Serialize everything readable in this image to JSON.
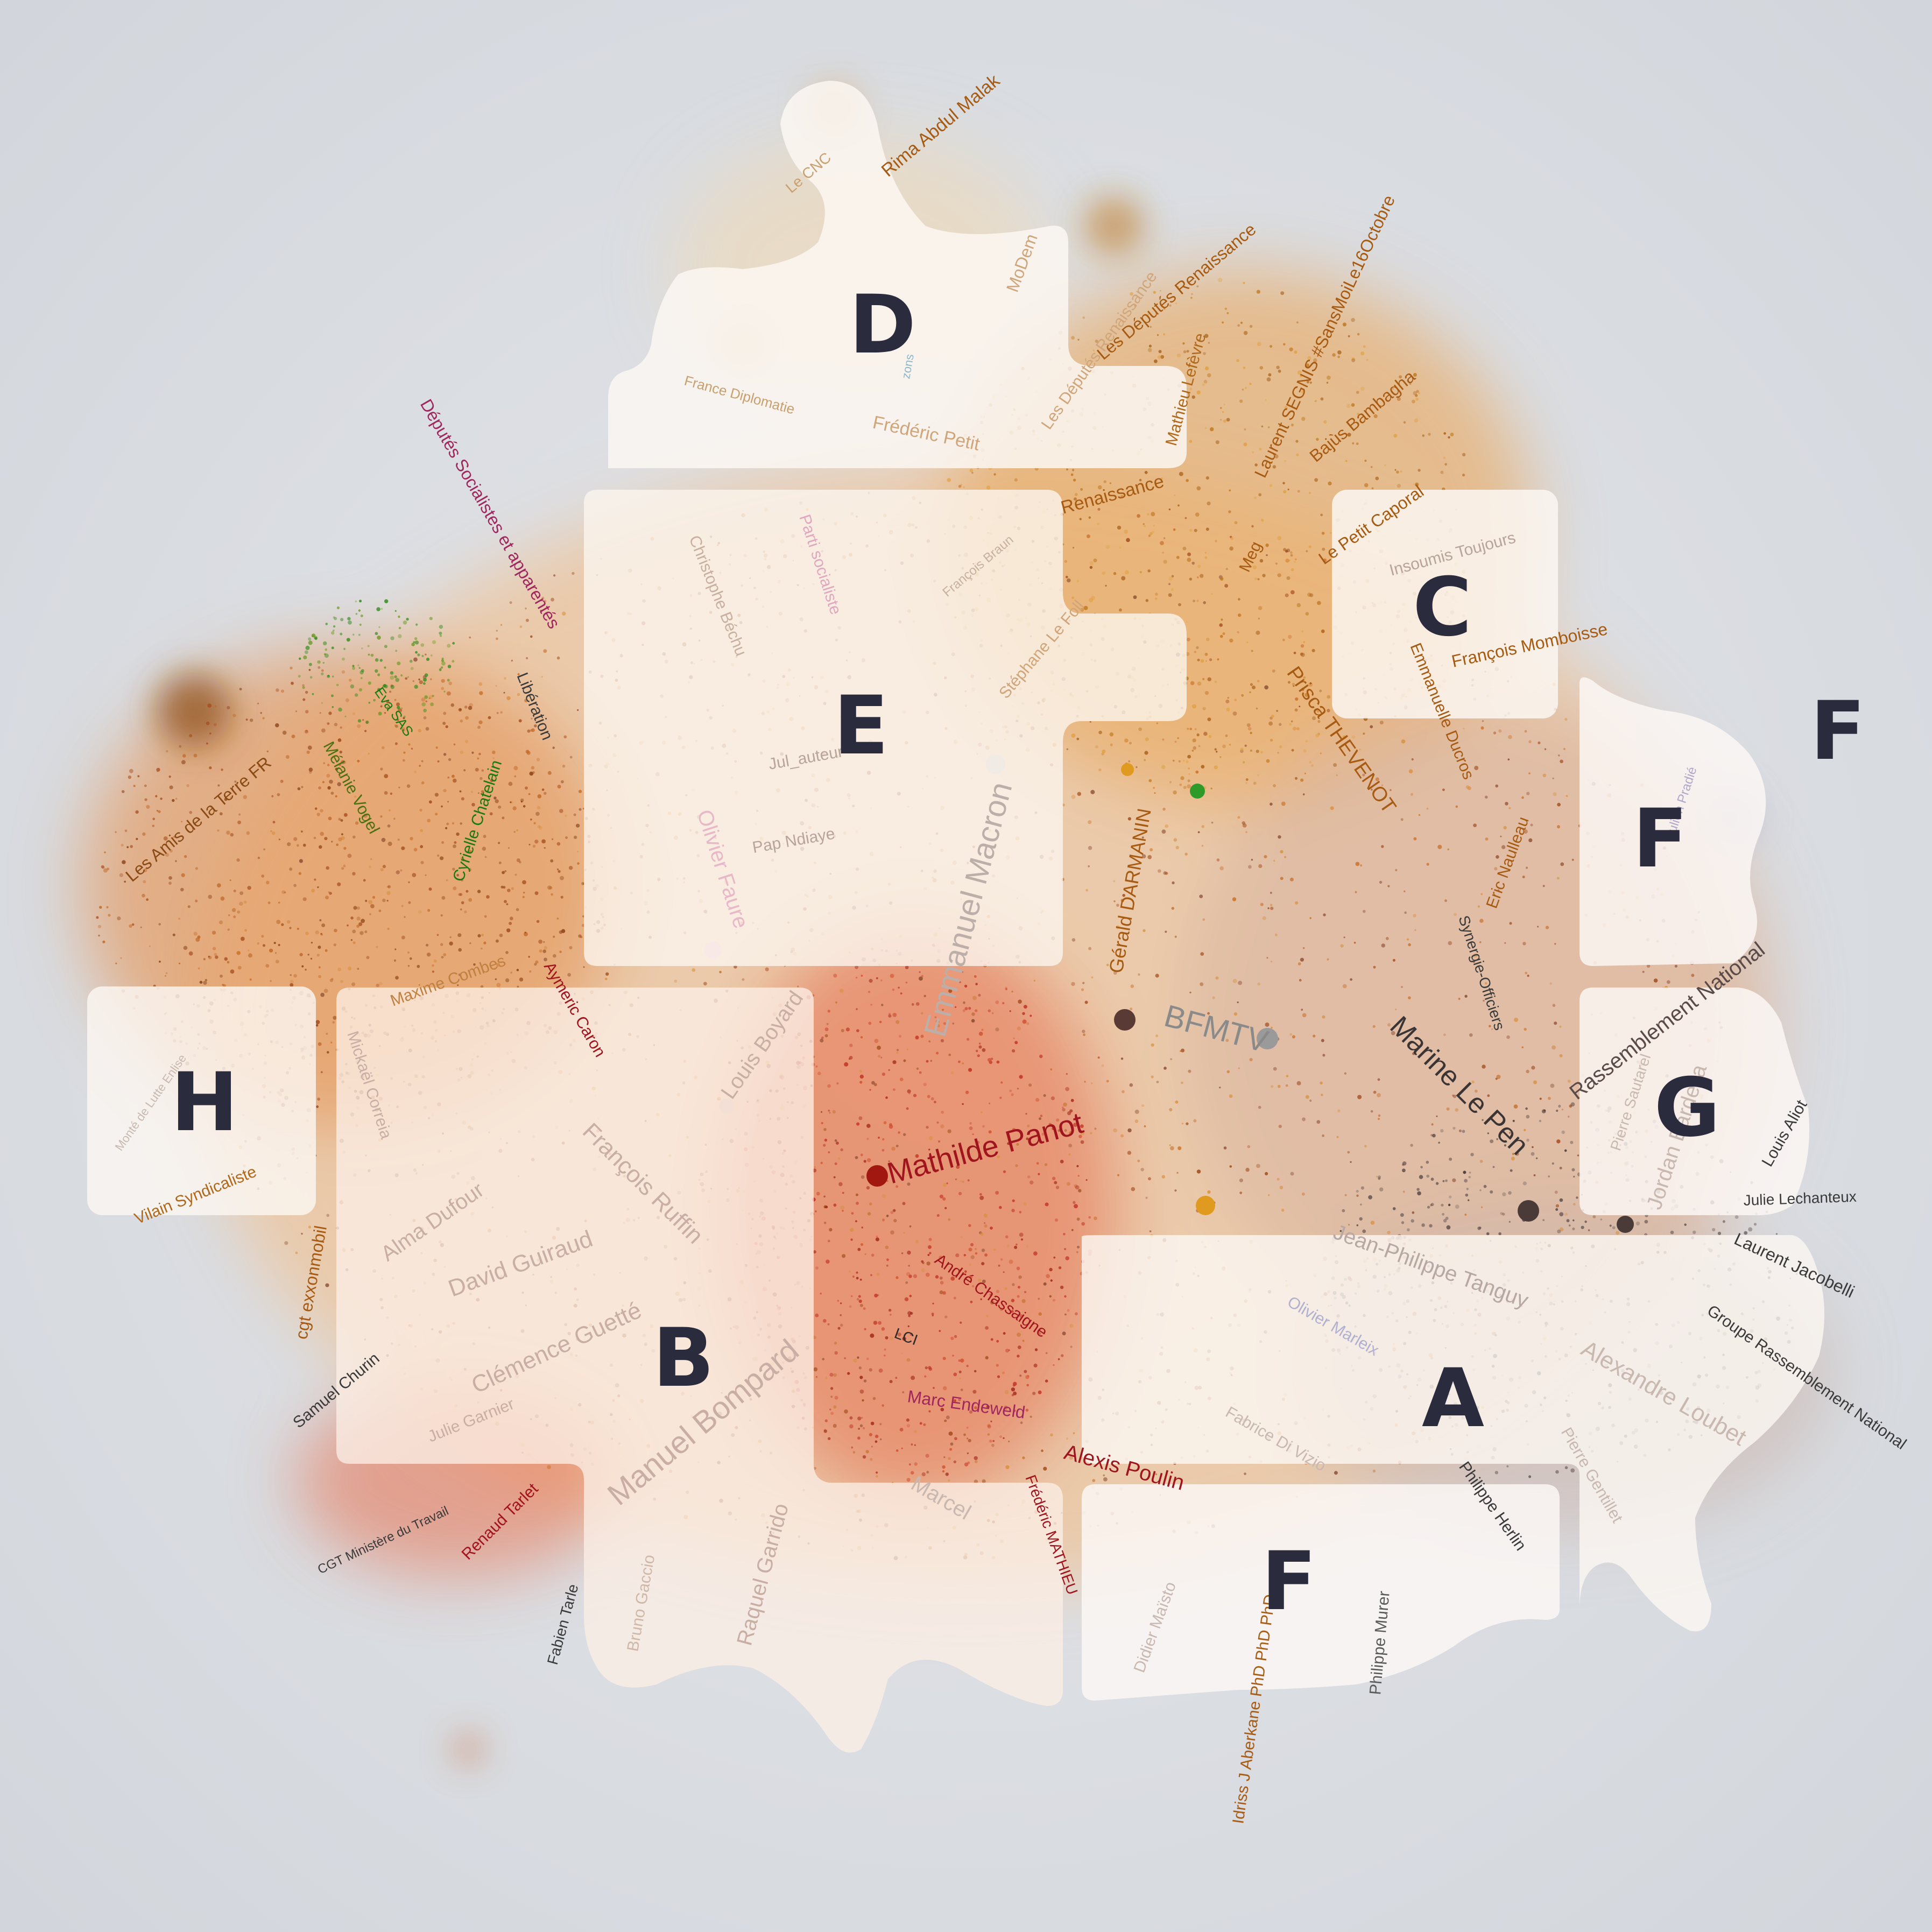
{
  "colors": {
    "background": "#d4d8de",
    "cloud_warm": "#e9a45a",
    "cloud_red": "#e4684a",
    "panel": "#fbf7f2",
    "letter": "#2b2b3e",
    "orange_label": "#a65a12",
    "dark_label": "#3a3a3a",
    "green_label": "#2e7d1a",
    "magenta_label": "#a0265e",
    "red_label": "#a0141e",
    "faded_label": "#b8a49a"
  },
  "zones": [
    {
      "letter": "D"
    },
    {
      "letter": "E"
    },
    {
      "letter": "C"
    },
    {
      "letter": "F"
    },
    {
      "letter": "F"
    },
    {
      "letter": "H"
    },
    {
      "letter": "B"
    },
    {
      "letter": "G"
    },
    {
      "letter": "A"
    },
    {
      "letter": "F"
    }
  ],
  "labels": [
    {
      "text": "Rima Abdul Malak",
      "color": "orange"
    },
    {
      "text": "Le CNC",
      "color": "orange_faded"
    },
    {
      "text": "MoDem",
      "color": "orange_faded"
    },
    {
      "text": "Les Députés Renaissance",
      "color": "orange"
    },
    {
      "text": "Laurent SEGNIS #SansMoiLe16Octobre",
      "color": "orange"
    },
    {
      "text": "Bajùs Bambagha",
      "color": "orange"
    },
    {
      "text": "Mathieu Lefèvre",
      "color": "orange"
    },
    {
      "text": "France Diplomatie",
      "color": "orange_faded"
    },
    {
      "text": "Frédéric Petit",
      "color": "orange_faded"
    },
    {
      "text": "Les Députés Renaissance",
      "color": "orange_faded"
    },
    {
      "text": "Renaissance",
      "color": "orange"
    },
    {
      "text": "Meg",
      "color": "orange"
    },
    {
      "text": "Le Petit Caporal",
      "color": "orange"
    },
    {
      "text": "Insoumis Toujours",
      "color": "faded"
    },
    {
      "text": "François Momboisse",
      "color": "orange"
    },
    {
      "text": "Emmanuelle Ducros",
      "color": "orange"
    },
    {
      "text": "Prisca THEVENOT",
      "color": "orange"
    },
    {
      "text": "Stéphane Le Foll",
      "color": "orange_faded"
    },
    {
      "text": "François Braun",
      "color": "faded"
    },
    {
      "text": "Christophe Béchu",
      "color": "faded"
    },
    {
      "text": "Parti socialiste",
      "color": "pink_faded"
    },
    {
      "text": "Jul_auteur",
      "color": "faded"
    },
    {
      "text": "Pap Ndiaye",
      "color": "faded"
    },
    {
      "text": "Olivier Faure",
      "color": "pink_faded"
    },
    {
      "text": "Emmanuel Macron",
      "color": "faded"
    },
    {
      "text": "Gérald DARMANIN",
      "color": "orange"
    },
    {
      "text": "Députés Socialistes et apparentés",
      "color": "magenta"
    },
    {
      "text": "Libération",
      "color": "dark"
    },
    {
      "text": "Eva SAS",
      "color": "green"
    },
    {
      "text": "Mélanie Vogel",
      "color": "green"
    },
    {
      "text": "Cyrielle Chatelain",
      "color": "green"
    },
    {
      "text": "Les Amis de la Terre FR",
      "color": "orange"
    },
    {
      "text": "Maxime Combes",
      "color": "orange"
    },
    {
      "text": "Aymeric Caron",
      "color": "red"
    },
    {
      "text": "Louis Boyard",
      "color": "faded"
    },
    {
      "text": "Mathilde Panot",
      "color": "red"
    },
    {
      "text": "BFMTV",
      "color": "grey"
    },
    {
      "text": "Marine Le Pen",
      "color": "dark"
    },
    {
      "text": "Synergie-Officiers",
      "color": "dark"
    },
    {
      "text": "Eric Naulleau",
      "color": "orange"
    },
    {
      "text": "Rassemblement National",
      "color": "dark"
    },
    {
      "text": "Julien Pradié",
      "color": "faded"
    },
    {
      "text": "Pierre Sautarel",
      "color": "faded"
    },
    {
      "text": "Jordan Bardella",
      "color": "faded"
    },
    {
      "text": "Louis Aliot",
      "color": "dark"
    },
    {
      "text": "Julie Lechanteux",
      "color": "dark"
    },
    {
      "text": "Laurent Jacobelli",
      "color": "dark"
    },
    {
      "text": "Jean-Philippe Tanguy",
      "color": "faded"
    },
    {
      "text": "Olivier Marleix",
      "color": "blue_faded"
    },
    {
      "text": "Groupe Rassemblement National",
      "color": "dark"
    },
    {
      "text": "Alexandre Loubet",
      "color": "faded"
    },
    {
      "text": "Fabrice Di Vizio",
      "color": "faded"
    },
    {
      "text": "Philippe Herlin",
      "color": "dark"
    },
    {
      "text": "Pierre Gentillet",
      "color": "faded"
    },
    {
      "text": "Alexis Poulin",
      "color": "red"
    },
    {
      "text": "André Chassaigne",
      "color": "red"
    },
    {
      "text": "LCI",
      "color": "dark"
    },
    {
      "text": "Marc Endeweld",
      "color": "magenta"
    },
    {
      "text": "Marcel",
      "color": "faded"
    },
    {
      "text": "Frédéric MATHIEU",
      "color": "red"
    },
    {
      "text": "Didier Maïsto",
      "color": "faded"
    },
    {
      "text": "Idriss J Aberkane PhD PhD PhD",
      "color": "orange"
    },
    {
      "text": "Philippe Murer",
      "color": "dark"
    },
    {
      "text": "Monté de Lutte Enlise",
      "color": "faded"
    },
    {
      "text": "Vilain Syndicaliste",
      "color": "orange"
    },
    {
      "text": "Mickaël Correia",
      "color": "faded"
    },
    {
      "text": "François Ruffin",
      "color": "faded"
    },
    {
      "text": "Alma Dufour",
      "color": "faded"
    },
    {
      "text": "David Guiraud",
      "color": "faded"
    },
    {
      "text": "Clémence Guetté",
      "color": "faded"
    },
    {
      "text": "Manuel Bompard",
      "color": "faded"
    },
    {
      "text": "cgt exxonmobil",
      "color": "orange"
    },
    {
      "text": "Samuel Churin",
      "color": "dark"
    },
    {
      "text": "Julie Garnier",
      "color": "faded"
    },
    {
      "text": "CGT Ministère du Travail",
      "color": "dark"
    },
    {
      "text": "Renaud Tarlet",
      "color": "red"
    },
    {
      "text": "Fabien Tarle",
      "color": "dark"
    },
    {
      "text": "Bruno Gaccio",
      "color": "faded"
    },
    {
      "text": "Raquel Garrido",
      "color": "faded"
    },
    {
      "text": "zons",
      "color": "blue_faded"
    }
  ]
}
